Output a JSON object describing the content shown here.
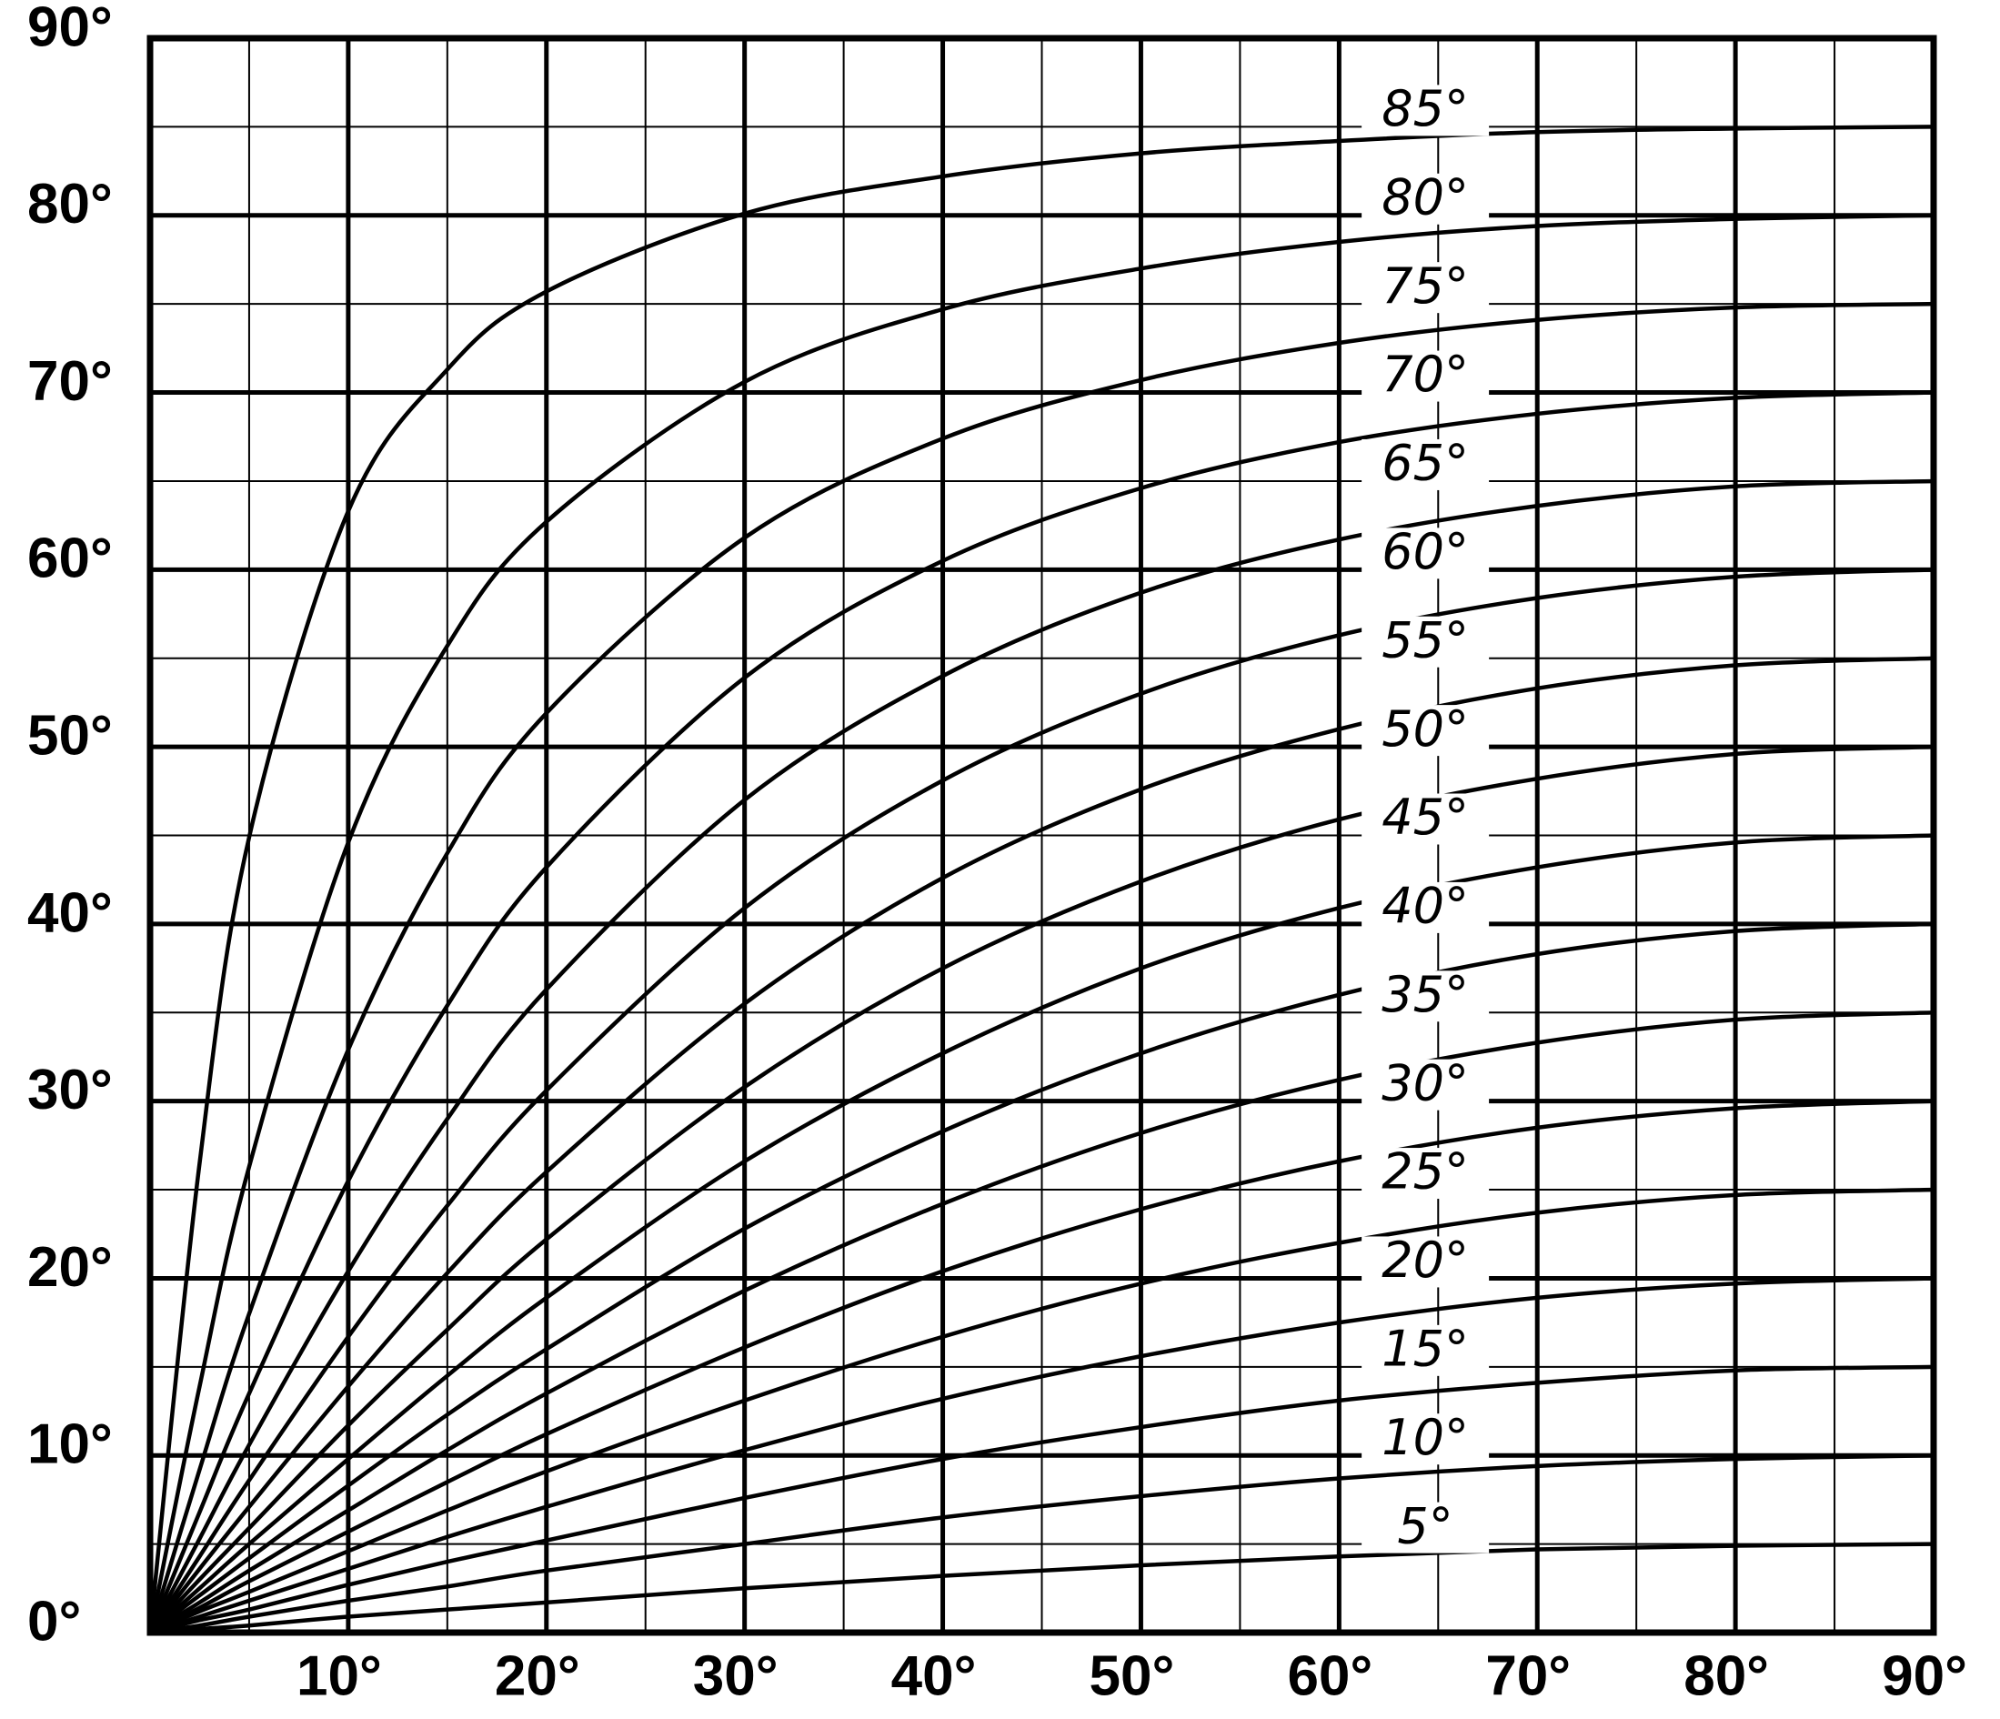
{
  "chart_data": {
    "type": "line",
    "color": "#000000",
    "grid": true,
    "xlim": [
      0,
      90
    ],
    "ylim": [
      0,
      90
    ],
    "xticks": [
      {
        "value": 10,
        "label": "10°"
      },
      {
        "value": 20,
        "label": "20°"
      },
      {
        "value": 30,
        "label": "30°"
      },
      {
        "value": 40,
        "label": "40°"
      },
      {
        "value": 50,
        "label": "50°"
      },
      {
        "value": 60,
        "label": "60°"
      },
      {
        "value": 70,
        "label": "70°"
      },
      {
        "value": 80,
        "label": "80°"
      },
      {
        "value": 90,
        "label": "90°"
      }
    ],
    "yticks": [
      {
        "value": 0,
        "label": "0°"
      },
      {
        "value": 10,
        "label": "10°"
      },
      {
        "value": 20,
        "label": "20°"
      },
      {
        "value": 30,
        "label": "30°"
      },
      {
        "value": 40,
        "label": "40°"
      },
      {
        "value": 50,
        "label": "50°"
      },
      {
        "value": 60,
        "label": "60°"
      },
      {
        "value": 70,
        "label": "70°"
      },
      {
        "value": 80,
        "label": "80°"
      },
      {
        "value": 90,
        "label": "90°"
      }
    ],
    "xminor": [
      5,
      15,
      25,
      35,
      45,
      55,
      65,
      75,
      85
    ],
    "yminor": [
      5,
      15,
      25,
      35,
      45,
      55,
      65,
      75,
      85
    ],
    "x": [
      0,
      2.5,
      5,
      10,
      15,
      20,
      30,
      40,
      50,
      60,
      70,
      80,
      90
    ],
    "series": [
      {
        "name": "5°",
        "values": [
          0,
          0.2,
          0.4,
          0.9,
          1.3,
          1.7,
          2.5,
          3.2,
          3.8,
          4.3,
          4.7,
          4.9,
          5
        ]
      },
      {
        "name": "10°",
        "values": [
          0,
          0.4,
          0.9,
          1.8,
          2.6,
          3.5,
          5.0,
          6.5,
          7.7,
          8.7,
          9.4,
          9.8,
          10
        ]
      },
      {
        "name": "15°",
        "values": [
          0,
          0.7,
          1.3,
          2.7,
          4.0,
          5.2,
          7.6,
          9.8,
          11.6,
          13.1,
          14.1,
          14.8,
          15
        ]
      },
      {
        "name": "20°",
        "values": [
          0,
          0.9,
          1.8,
          3.6,
          5.4,
          7.1,
          10.3,
          13.2,
          15.6,
          17.5,
          18.9,
          19.7,
          20
        ]
      },
      {
        "name": "25°",
        "values": [
          0,
          1.2,
          2.3,
          4.6,
          6.9,
          9.1,
          13.1,
          16.7,
          19.7,
          22.0,
          23.7,
          24.7,
          25
        ]
      },
      {
        "name": "30°",
        "values": [
          0,
          1.4,
          2.9,
          5.7,
          8.5,
          11.2,
          16.1,
          20.4,
          23.9,
          26.6,
          28.5,
          29.6,
          30
        ]
      },
      {
        "name": "35°",
        "values": [
          0,
          1.7,
          3.5,
          6.9,
          10.3,
          13.5,
          19.3,
          24.2,
          28.2,
          31.2,
          33.3,
          34.6,
          35
        ]
      },
      {
        "name": "40°",
        "values": [
          0,
          2.1,
          4.2,
          8.3,
          12.3,
          16.0,
          22.8,
          28.3,
          32.7,
          36.0,
          38.3,
          39.6,
          40
        ]
      },
      {
        "name": "45°",
        "values": [
          0,
          2.5,
          5.0,
          9.8,
          14.5,
          18.9,
          26.6,
          32.7,
          37.5,
          40.9,
          43.2,
          44.6,
          45
        ]
      },
      {
        "name": "50°",
        "values": [
          0,
          3.0,
          5.9,
          11.7,
          17.1,
          22.2,
          30.8,
          37.5,
          42.4,
          45.9,
          48.2,
          49.6,
          50
        ]
      },
      {
        "name": "55°",
        "values": [
          0,
          3.6,
          7.1,
          13.9,
          20.3,
          26.0,
          35.5,
          42.6,
          47.6,
          51.0,
          53.3,
          54.6,
          55
        ]
      },
      {
        "name": "60°",
        "values": [
          0,
          4.3,
          8.6,
          16.7,
          24.1,
          30.6,
          40.9,
          48.1,
          53.0,
          56.3,
          58.4,
          59.6,
          60
        ]
      },
      {
        "name": "65°",
        "values": [
          0,
          5.3,
          10.6,
          20.4,
          29.0,
          36.3,
          47.0,
          54.0,
          58.7,
          61.7,
          63.6,
          64.7,
          65
        ]
      },
      {
        "name": "70°",
        "values": [
          0,
          6.8,
          13.5,
          25.5,
          35.4,
          43.2,
          53.9,
          60.5,
          64.6,
          67.2,
          68.8,
          69.7,
          70
        ]
      },
      {
        "name": "75°",
        "values": [
          0,
          9.2,
          18.0,
          32.9,
          44.0,
          51.9,
          61.8,
          67.4,
          70.7,
          72.8,
          74.1,
          74.8,
          75
        ]
      },
      {
        "name": "80°",
        "values": [
          0,
          13.9,
          26.3,
          44.6,
          55.7,
          62.7,
          70.6,
          74.7,
          77.0,
          78.5,
          79.4,
          79.8,
          80
        ]
      },
      {
        "name": "85°",
        "values": [
          0,
          26.5,
          44.9,
          63.3,
          71.3,
          75.7,
          80.1,
          82.2,
          83.5,
          84.2,
          84.7,
          84.9,
          85
        ]
      }
    ]
  }
}
